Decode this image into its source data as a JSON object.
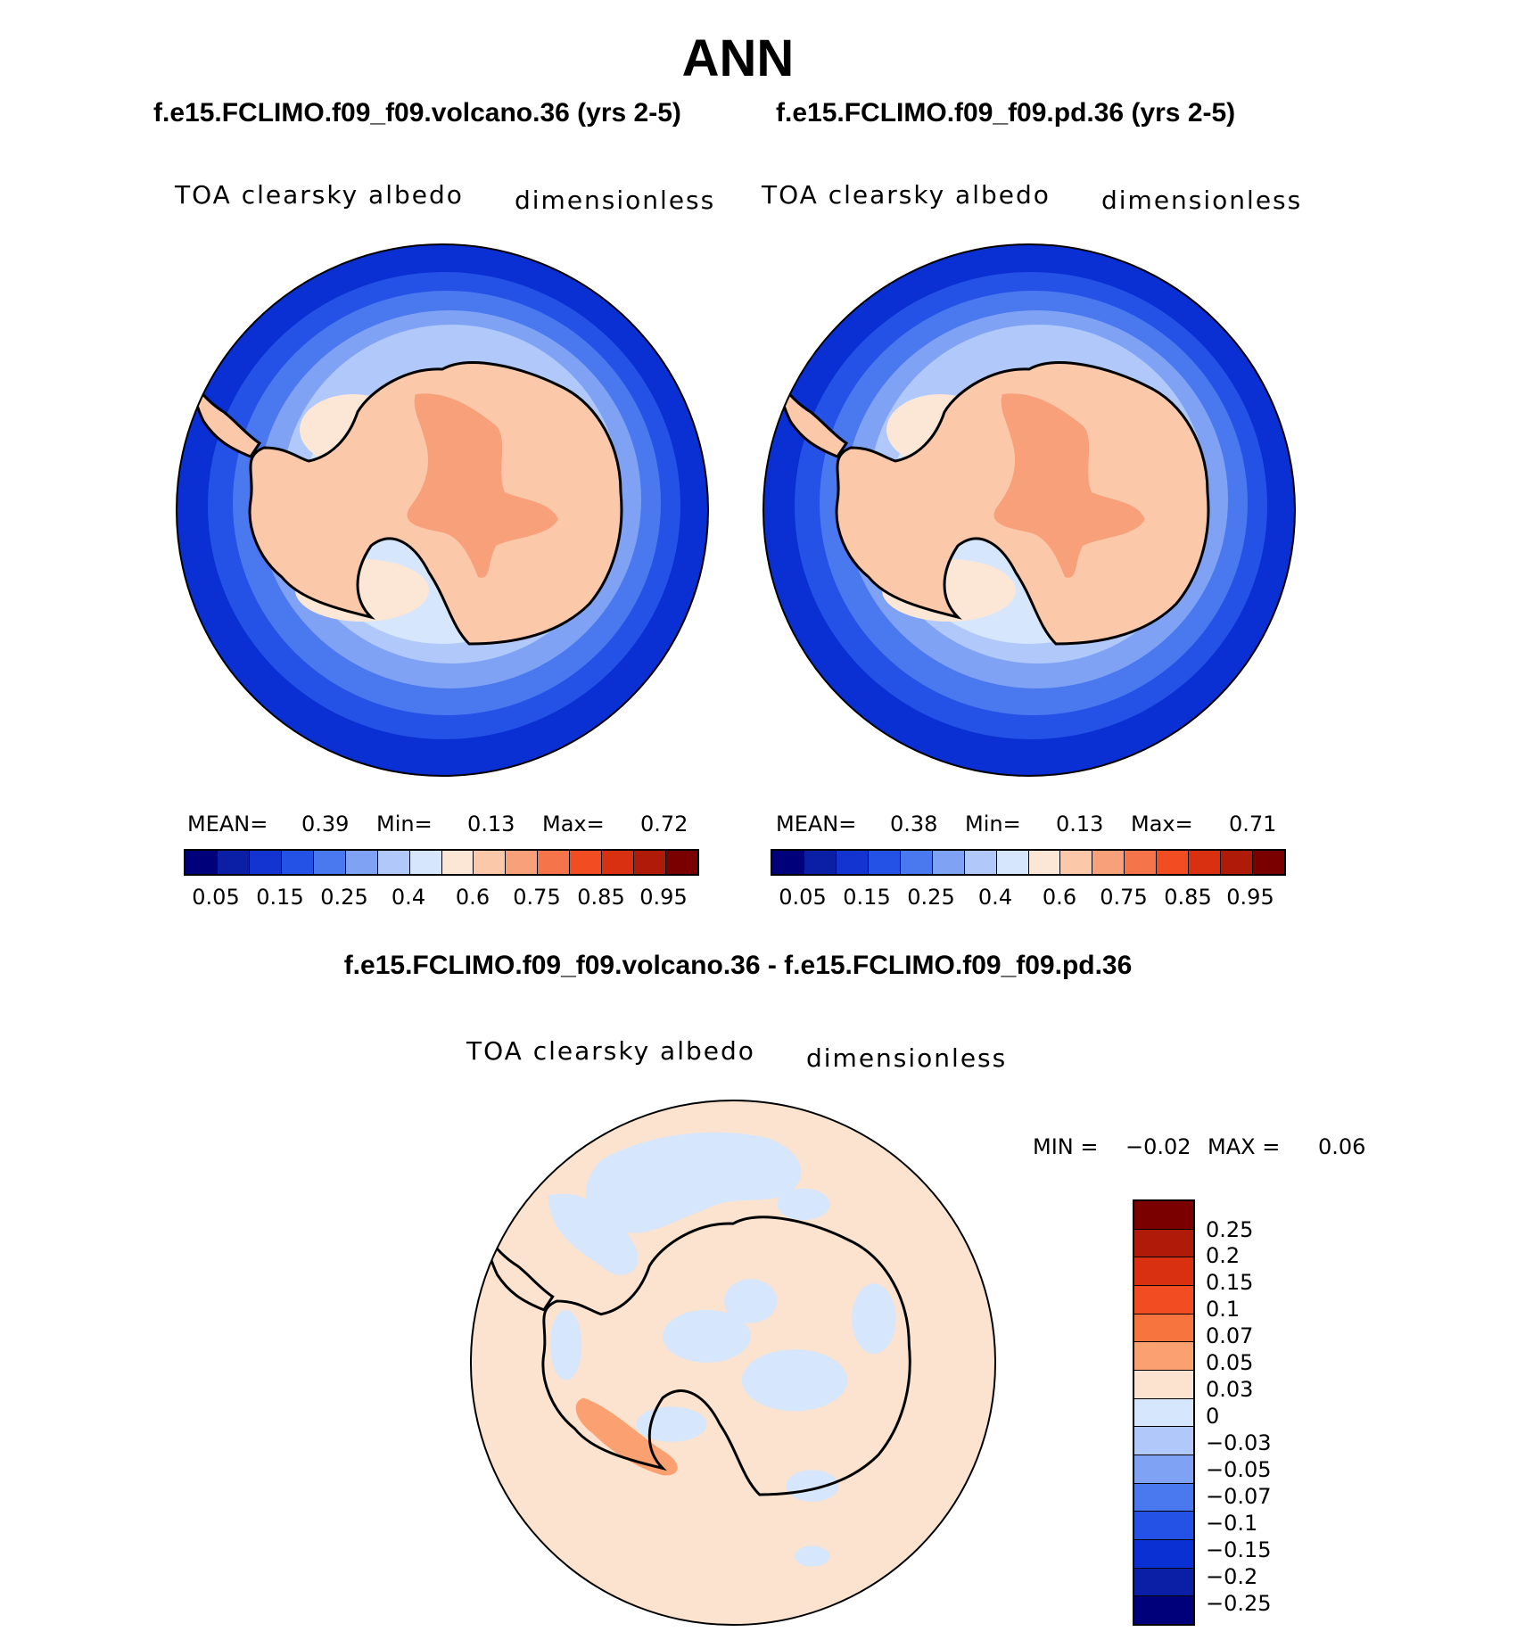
{
  "title": "ANN",
  "panels": [
    {
      "case": "f.e15.FCLIMO.f09_f09.volcano.36 (yrs 2-5)",
      "variable": "TOA clearsky albedo",
      "units": "dimensionless",
      "stats": {
        "mean_label": "MEAN=",
        "mean": "0.39",
        "min_label": "Min=",
        "min": "0.13",
        "max_label": "Max=",
        "max": "0.72"
      }
    },
    {
      "case": "f.e15.FCLIMO.f09_f09.pd.36 (yrs 2-5)",
      "variable": "TOA clearsky albedo",
      "units": "dimensionless",
      "stats": {
        "mean_label": "MEAN=",
        "mean": "0.38",
        "min_label": "Min=",
        "min": "0.13",
        "max_label": "Max=",
        "max": "0.71"
      }
    }
  ],
  "colorbar": {
    "colors": [
      "#00007a",
      "#0a1fa6",
      "#1434d2",
      "#2452e6",
      "#4a78ee",
      "#7fa2f4",
      "#b0c9fa",
      "#d6e6fc",
      "#fce7d6",
      "#fbc8aa",
      "#f8a07a",
      "#f6744a",
      "#f24c22",
      "#d83010",
      "#b01a08",
      "#7a0000"
    ],
    "tick_labels": [
      "0.05",
      "0.15",
      "0.25",
      "0.4",
      "0.6",
      "0.75",
      "0.85",
      "0.95"
    ]
  },
  "diff": {
    "title": "f.e15.FCLIMO.f09_f09.volcano.36 - f.e15.FCLIMO.f09_f09.pd.36",
    "variable": "TOA clearsky albedo",
    "units": "dimensionless",
    "min_label": "MIN =",
    "min": "−0.02",
    "max_label": "MAX =",
    "max": "0.06",
    "colorbar_colors": [
      "#7a0000",
      "#b01a08",
      "#d83010",
      "#f24c22",
      "#f8743e",
      "#fba070",
      "#fce3cf",
      "#d6e6fc",
      "#b0c9fa",
      "#7fa2f4",
      "#4a78ee",
      "#2452e6",
      "#0a2fd2",
      "#0a1fa6",
      "#00007a"
    ],
    "tick_labels": [
      "0.25",
      "0.2",
      "0.15",
      "0.1",
      "0.07",
      "0.05",
      "0.03",
      "0",
      "−0.03",
      "−0.05",
      "−0.07",
      "−0.1",
      "−0.15",
      "−0.2",
      "−0.25"
    ]
  }
}
